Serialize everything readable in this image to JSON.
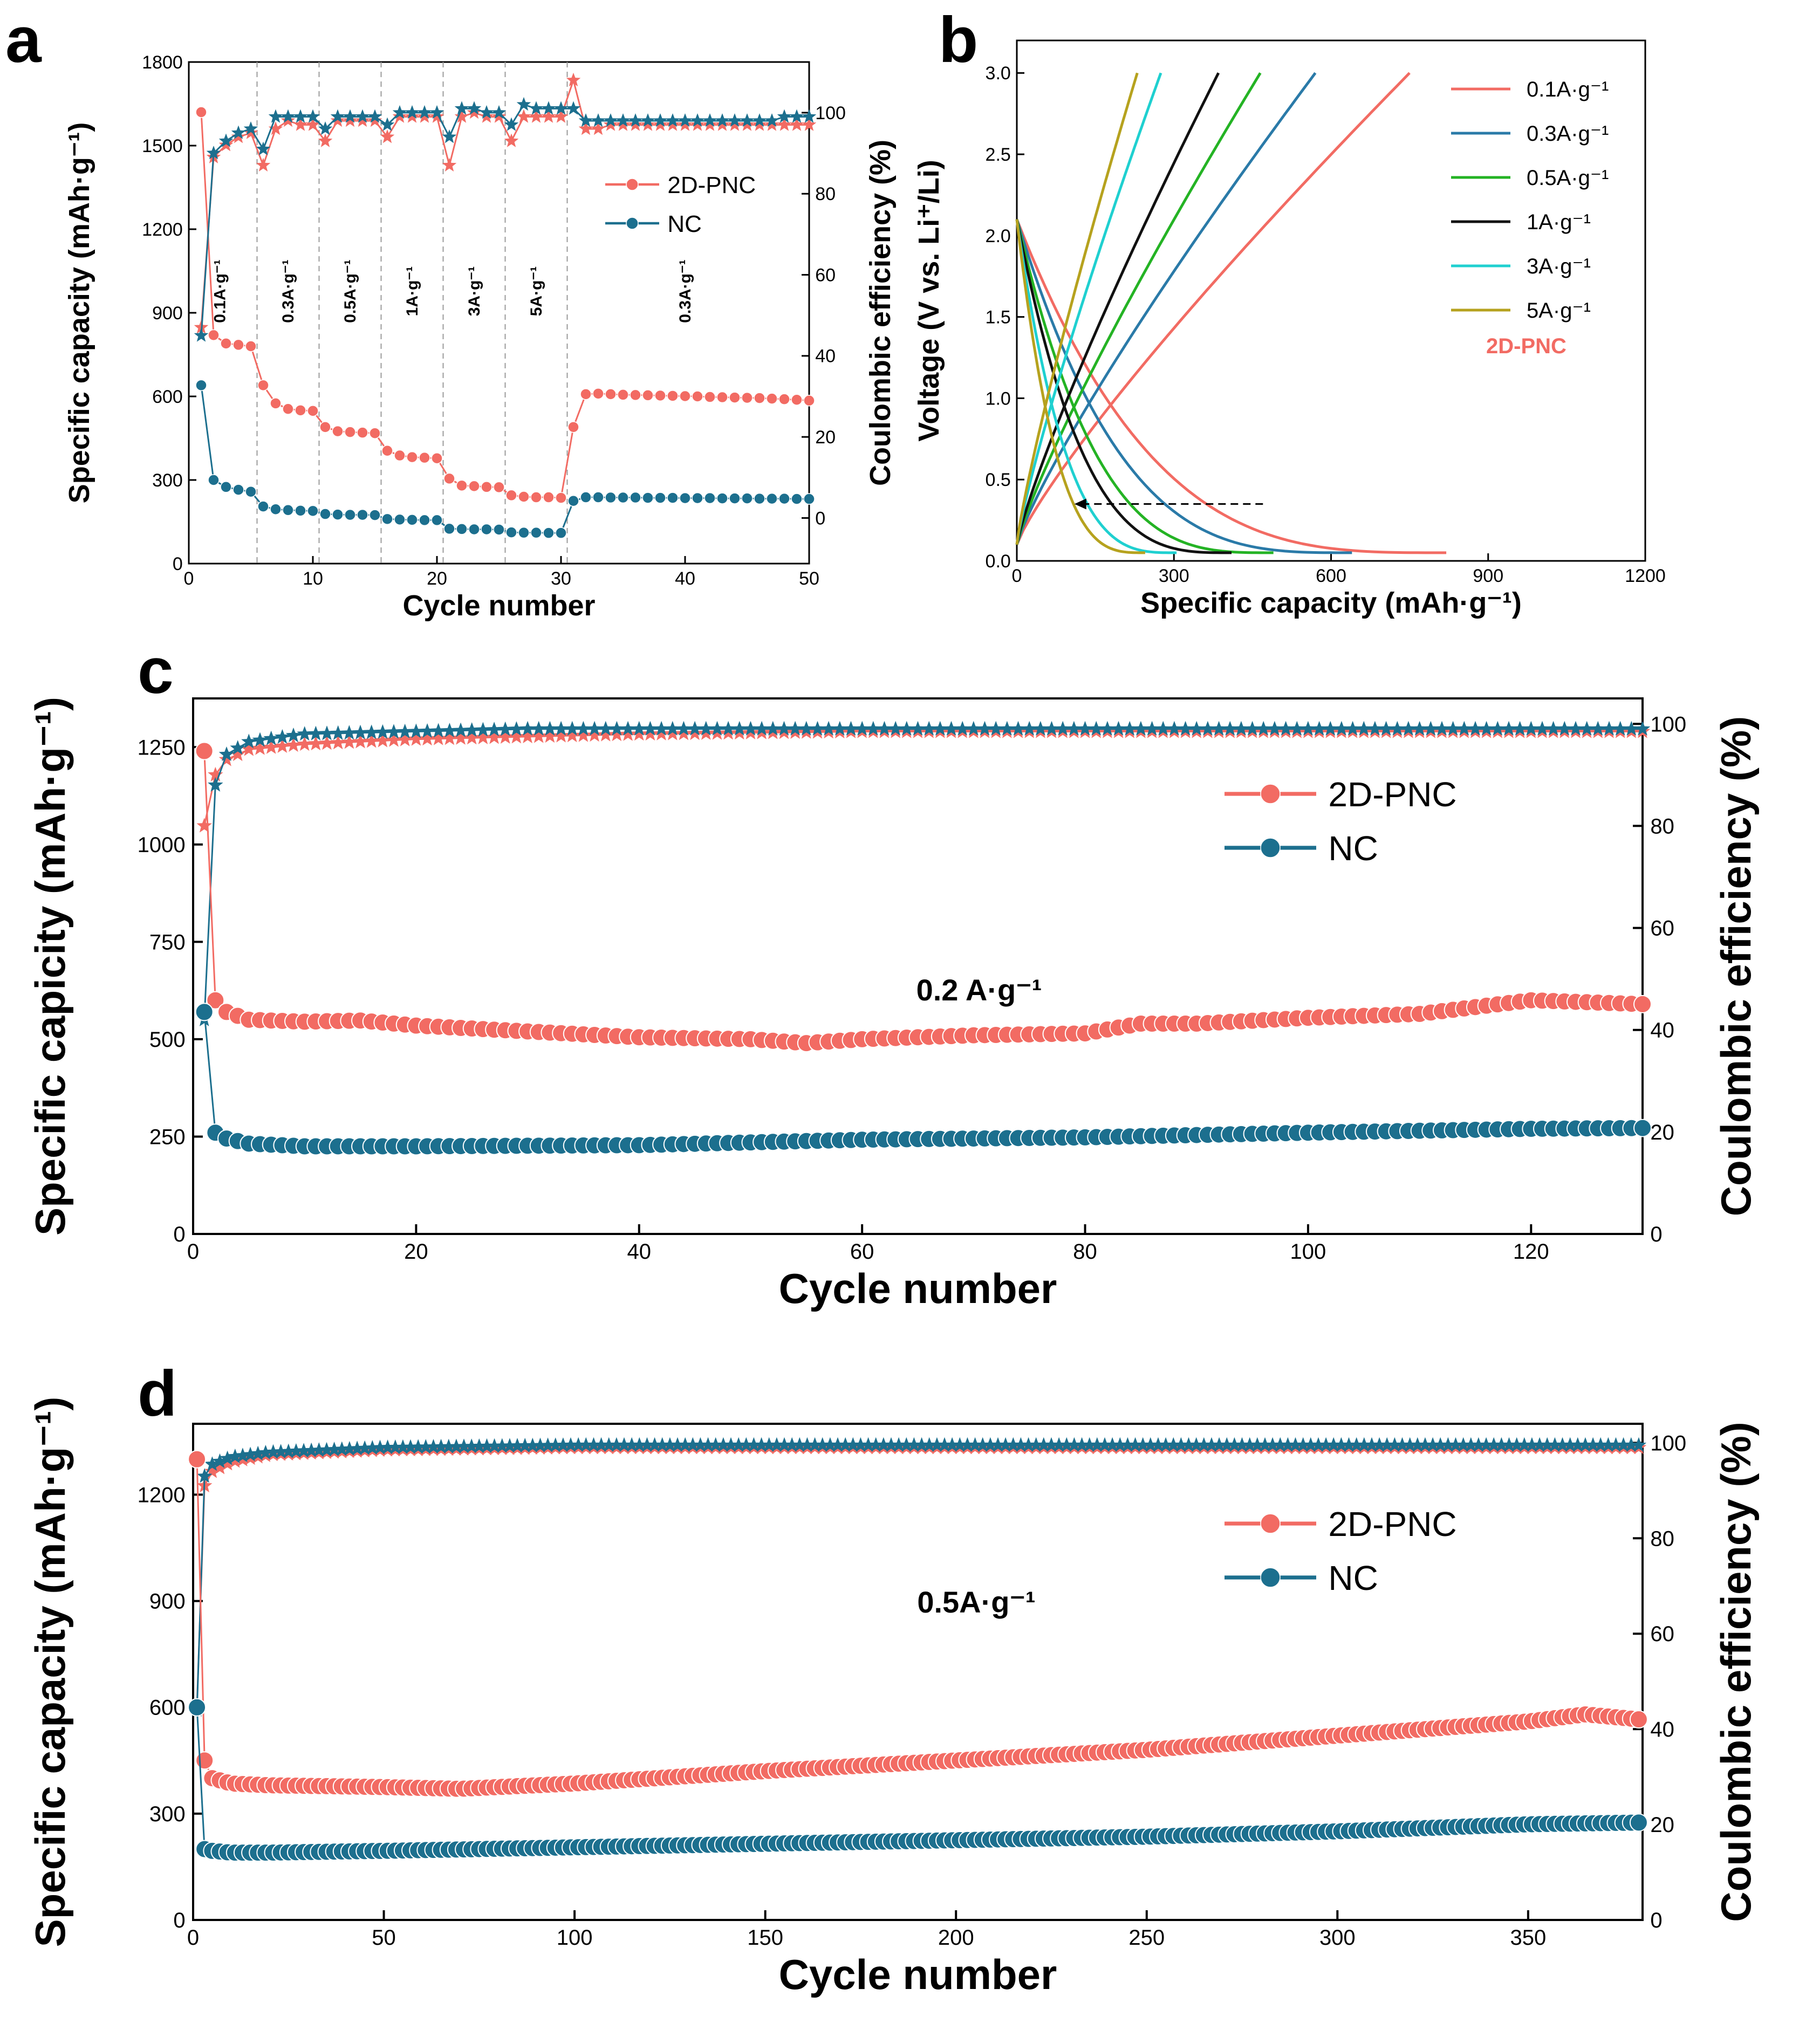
{
  "colors": {
    "pnc": "#f26b63",
    "nc": "#1c6f8e"
  },
  "chart_data": [
    {
      "id": "a",
      "type": "scatter",
      "panel_label": "a",
      "xlabel": "Cycle number",
      "ylabel": "Specific capacity (mAh·g⁻¹)",
      "y2label": "Coulombic efficiency (%)",
      "xlim": [
        0,
        50
      ],
      "ylim": [
        0,
        1800
      ],
      "y2lim": [
        -11.25,
        112.5
      ],
      "xticks": [
        0,
        10,
        20,
        30,
        40,
        50
      ],
      "yticks": [
        0,
        300,
        600,
        900,
        1200,
        1500,
        1800
      ],
      "y2ticks": [
        0,
        20,
        40,
        60,
        80,
        100
      ],
      "grid": false,
      "legend_position": "upper-right",
      "dividers": [
        5.5,
        10.5,
        15.5,
        20.5,
        25.5,
        30.5
      ],
      "rate_labels": [
        {
          "x": 2.5,
          "text": "0.1A·g⁻¹"
        },
        {
          "x": 8,
          "text": "0.3A·g⁻¹"
        },
        {
          "x": 13,
          "text": "0.5A·g⁻¹"
        },
        {
          "x": 18,
          "text": "1A·g⁻¹"
        },
        {
          "x": 23,
          "text": "3A·g⁻¹"
        },
        {
          "x": 28,
          "text": "5A·g⁻¹"
        },
        {
          "x": 40,
          "text": "0.3A·g⁻¹"
        }
      ],
      "series": [
        {
          "name": "2D-PNC",
          "role": "capacity",
          "color": "pnc",
          "x": [
            1,
            2,
            3,
            4,
            5,
            6,
            7,
            8,
            9,
            10,
            11,
            12,
            13,
            14,
            15,
            16,
            17,
            18,
            19,
            20,
            21,
            22,
            23,
            24,
            25,
            26,
            27,
            28,
            29,
            30,
            31,
            32,
            33,
            34,
            35,
            36,
            37,
            38,
            39,
            40,
            41,
            42,
            43,
            44,
            45,
            46,
            47,
            48,
            49,
            50
          ],
          "y": [
            1620,
            820,
            790,
            785,
            780,
            640,
            575,
            555,
            550,
            548,
            490,
            475,
            472,
            470,
            468,
            405,
            388,
            382,
            380,
            378,
            305,
            280,
            278,
            275,
            274,
            245,
            240,
            238,
            238,
            236,
            490,
            608,
            610,
            608,
            606,
            605,
            604,
            603,
            602,
            601,
            600,
            598,
            597,
            596,
            595,
            594,
            592,
            590,
            588,
            585
          ]
        },
        {
          "name": "NC",
          "role": "capacity",
          "color": "nc",
          "x": [
            1,
            2,
            3,
            4,
            5,
            6,
            7,
            8,
            9,
            10,
            11,
            12,
            13,
            14,
            15,
            16,
            17,
            18,
            19,
            20,
            21,
            22,
            23,
            24,
            25,
            26,
            27,
            28,
            29,
            30,
            31,
            32,
            33,
            34,
            35,
            36,
            37,
            38,
            39,
            40,
            41,
            42,
            43,
            44,
            45,
            46,
            47,
            48,
            49,
            50
          ],
          "y": [
            640,
            300,
            275,
            265,
            258,
            205,
            195,
            192,
            190,
            189,
            178,
            176,
            175,
            175,
            174,
            160,
            158,
            157,
            156,
            156,
            125,
            124,
            123,
            123,
            122,
            112,
            111,
            111,
            110,
            110,
            225,
            238,
            238,
            237,
            237,
            237,
            236,
            236,
            236,
            235,
            235,
            235,
            234,
            234,
            234,
            233,
            233,
            233,
            232,
            232
          ]
        },
        {
          "name": "2D-PNC",
          "role": "efficiency",
          "color": "pnc",
          "x": [
            1,
            2,
            3,
            4,
            5,
            6,
            7,
            8,
            9,
            10,
            11,
            12,
            13,
            14,
            15,
            16,
            17,
            18,
            19,
            20,
            21,
            22,
            23,
            24,
            25,
            26,
            27,
            28,
            29,
            30,
            31,
            32,
            33,
            34,
            35,
            36,
            37,
            38,
            39,
            40,
            41,
            42,
            43,
            44,
            45,
            46,
            47,
            48,
            49,
            50
          ],
          "y": [
            47,
            89,
            92,
            94,
            95,
            87,
            96,
            98,
            97,
            97,
            93,
            98,
            98,
            98,
            98,
            94,
            99,
            99,
            99,
            99,
            87,
            99,
            100,
            99,
            99,
            93,
            99,
            99,
            99,
            99,
            108,
            96,
            96,
            97,
            97,
            97,
            97,
            97,
            97,
            97,
            97,
            97,
            97,
            97,
            97,
            97,
            97,
            97,
            97,
            97
          ]
        },
        {
          "name": "NC",
          "role": "efficiency",
          "color": "nc",
          "x": [
            1,
            2,
            3,
            4,
            5,
            6,
            7,
            8,
            9,
            10,
            11,
            12,
            13,
            14,
            15,
            16,
            17,
            18,
            19,
            20,
            21,
            22,
            23,
            24,
            25,
            26,
            27,
            28,
            29,
            30,
            31,
            32,
            33,
            34,
            35,
            36,
            37,
            38,
            39,
            40,
            41,
            42,
            43,
            44,
            45,
            46,
            47,
            48,
            49,
            50
          ],
          "y": [
            45,
            90,
            93,
            95,
            96,
            91,
            99,
            99,
            99,
            99,
            96,
            99,
            99,
            99,
            99,
            97,
            100,
            100,
            100,
            100,
            94,
            101,
            101,
            100,
            100,
            97,
            102,
            101,
            101,
            101,
            101,
            98,
            98,
            98,
            98,
            98,
            98,
            98,
            98,
            98,
            98,
            98,
            98,
            98,
            98,
            98,
            98,
            99,
            99,
            99
          ]
        }
      ]
    },
    {
      "id": "b",
      "type": "line",
      "panel_label": "b",
      "xlabel": "Specific capacity (mAh·g⁻¹)",
      "ylabel": "Voltage (V vs. Li⁺/Li)",
      "xlim": [
        0,
        1200
      ],
      "ylim": [
        0,
        3.2
      ],
      "xticks": [
        0,
        300,
        600,
        900,
        1200
      ],
      "yticks": [
        0.0,
        0.5,
        1.0,
        1.5,
        2.0,
        2.5,
        3.0
      ],
      "grid": false,
      "legend_position": "upper-right",
      "annotation": "2D-PNC",
      "series": [
        {
          "name": "0.1A·g⁻¹",
          "color": "#f26b63",
          "discharge_cap": 820,
          "charge_cap": 750
        },
        {
          "name": "0.3A·g⁻¹",
          "color": "#2a7aa8",
          "discharge_cap": 640,
          "charge_cap": 570
        },
        {
          "name": "0.5A·g⁻¹",
          "color": "#24b324",
          "discharge_cap": 490,
          "charge_cap": 465
        },
        {
          "name": "1A·g⁻¹",
          "color": "#111111",
          "discharge_cap": 410,
          "charge_cap": 385
        },
        {
          "name": "3A·g⁻¹",
          "color": "#1fd0d0",
          "discharge_cap": 305,
          "charge_cap": 275
        },
        {
          "name": "5A·g⁻¹",
          "color": "#b6a21e",
          "discharge_cap": 245,
          "charge_cap": 230
        }
      ]
    },
    {
      "id": "c",
      "type": "scatter",
      "panel_label": "c",
      "xlabel": "Cycle number",
      "ylabel": "Specific capicity (mAh·g⁻¹)",
      "y2label": "Coulombic efficiency (%)",
      "xlim": [
        0,
        130
      ],
      "ylim": [
        0,
        1375
      ],
      "y2lim": [
        0,
        105
      ],
      "xticks": [
        0,
        20,
        40,
        60,
        80,
        100,
        120
      ],
      "yticks": [
        0,
        250,
        500,
        750,
        1000,
        1250
      ],
      "y2ticks": [
        0,
        20,
        40,
        60,
        80,
        100
      ],
      "grid": false,
      "legend_position": "upper-right",
      "annotation": "0.2 A·g⁻¹",
      "capacity_points": {
        "2D-PNC": {
          "x": [
            1,
            2,
            3,
            5,
            10,
            15,
            20,
            30,
            40,
            50,
            55,
            60,
            70,
            80,
            85,
            90,
            100,
            110,
            120,
            125,
            130
          ],
          "y": [
            1240,
            600,
            570,
            550,
            545,
            548,
            535,
            520,
            505,
            500,
            490,
            500,
            510,
            515,
            540,
            540,
            555,
            565,
            600,
            595,
            590
          ]
        },
        "NC": {
          "x": [
            1,
            2,
            3,
            5,
            10,
            20,
            40,
            60,
            80,
            100,
            120,
            130
          ],
          "y": [
            570,
            260,
            245,
            232,
            225,
            225,
            228,
            242,
            248,
            260,
            270,
            272
          ]
        }
      },
      "efficiency_points": {
        "2D-PNC": {
          "x": [
            1,
            2,
            3,
            5,
            10,
            20,
            30,
            40,
            60,
            80,
            100,
            120,
            130
          ],
          "y": [
            80,
            90,
            93,
            95,
            96,
            97,
            97.5,
            98,
            98.5,
            98.5,
            98.5,
            98.5,
            98.5
          ]
        },
        "NC": {
          "x": [
            1,
            2,
            3,
            5,
            10,
            20,
            30,
            40,
            60,
            80,
            100,
            120,
            130
          ],
          "y": [
            42,
            88,
            94,
            96.5,
            98,
            98.5,
            99,
            99,
            99,
            99,
            99,
            99,
            99
          ]
        }
      },
      "series": [
        {
          "name": "2D-PNC",
          "color": "pnc"
        },
        {
          "name": "NC",
          "color": "nc"
        }
      ]
    },
    {
      "id": "d",
      "type": "scatter",
      "panel_label": "d",
      "xlabel": "Cycle number",
      "ylabel": "Specific capacity (mAh·g⁻¹)",
      "y2label": "Coulombic efficiency (%)",
      "xlim": [
        0,
        380
      ],
      "ylim": [
        0,
        1400
      ],
      "y2lim": [
        0,
        104
      ],
      "xticks": [
        0,
        50,
        100,
        150,
        200,
        250,
        300,
        350
      ],
      "yticks": [
        0,
        300,
        600,
        900,
        1200
      ],
      "y2ticks": [
        0,
        20,
        40,
        60,
        80,
        100
      ],
      "grid": false,
      "legend_position": "upper-right",
      "annotation": "0.5A·g⁻¹",
      "capacity_points": {
        "2D-PNC": {
          "x": [
            1,
            2,
            3,
            5,
            10,
            20,
            50,
            70,
            100,
            150,
            200,
            250,
            300,
            350,
            365,
            375,
            380
          ],
          "y": [
            1300,
            620,
            450,
            400,
            385,
            380,
            375,
            370,
            385,
            420,
            450,
            480,
            520,
            560,
            580,
            570,
            565
          ]
        },
        "NC": {
          "x": [
            1,
            2,
            3,
            5,
            10,
            20,
            50,
            100,
            150,
            200,
            250,
            300,
            350,
            380
          ],
          "y": [
            600,
            220,
            200,
            195,
            190,
            190,
            195,
            205,
            215,
            225,
            235,
            250,
            270,
            275
          ]
        }
      },
      "efficiency_points": {
        "2D-PNC": {
          "x": [
            1,
            2,
            3,
            5,
            10,
            20,
            50,
            100,
            200,
            300,
            380
          ],
          "y": [
            45,
            84,
            91,
            94,
            96,
            97.5,
            98.5,
            99,
            99,
            99,
            99
          ]
        },
        "NC": {
          "x": [
            1,
            2,
            3,
            5,
            10,
            20,
            50,
            100,
            200,
            300,
            380
          ],
          "y": [
            44,
            86,
            93,
            95.5,
            97,
            98,
            99,
            99.5,
            99.5,
            99.5,
            99.5
          ]
        }
      },
      "series": [
        {
          "name": "2D-PNC",
          "color": "pnc"
        },
        {
          "name": "NC",
          "color": "nc"
        }
      ]
    }
  ]
}
